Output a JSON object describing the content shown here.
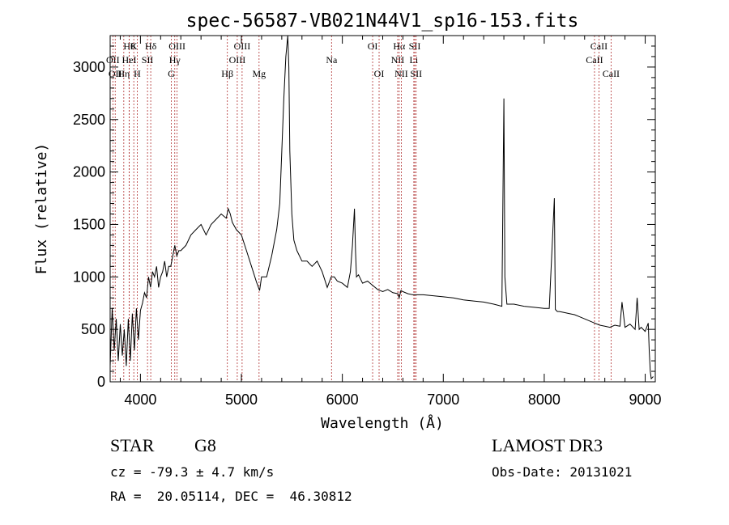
{
  "chart_data": {
    "type": "line",
    "title": "spec-56587-VB021N44V1_sp16-153.fits",
    "xlabel": "Wavelength (Å)",
    "ylabel": "Flux (relative)",
    "xlim": [
      3700,
      9100
    ],
    "ylim": [
      0,
      3300
    ],
    "xticks": [
      4000,
      5000,
      6000,
      7000,
      8000,
      9000
    ],
    "yticks": [
      0,
      500,
      1000,
      1500,
      2000,
      2500,
      3000
    ],
    "grid": false,
    "series": [
      {
        "color": "#000000",
        "x": [
          3700,
          3720,
          3740,
          3760,
          3780,
          3800,
          3820,
          3840,
          3860,
          3880,
          3900,
          3920,
          3940,
          3960,
          3980,
          4000,
          4020,
          4040,
          4060,
          4080,
          4100,
          4120,
          4140,
          4160,
          4180,
          4200,
          4220,
          4240,
          4260,
          4280,
          4300,
          4320,
          4340,
          4360,
          4380,
          4400,
          4450,
          4500,
          4550,
          4600,
          4650,
          4700,
          4750,
          4800,
          4850,
          4870,
          4890,
          4910,
          4950,
          5000,
          5050,
          5100,
          5150,
          5180,
          5200,
          5250,
          5300,
          5350,
          5380,
          5400,
          5420,
          5440,
          5460,
          5470,
          5480,
          5500,
          5520,
          5550,
          5600,
          5650,
          5700,
          5750,
          5800,
          5850,
          5890,
          5920,
          5950,
          6000,
          6050,
          6080,
          6100,
          6120,
          6130,
          6140,
          6160,
          6200,
          6250,
          6300,
          6350,
          6400,
          6450,
          6500,
          6550,
          6563,
          6580,
          6600,
          6650,
          6700,
          6800,
          6900,
          7000,
          7100,
          7200,
          7300,
          7400,
          7500,
          7580,
          7600,
          7610,
          7630,
          7700,
          7800,
          7900,
          8000,
          8050,
          8100,
          8110,
          8130,
          8150,
          8200,
          8250,
          8300,
          8350,
          8400,
          8450,
          8500,
          8550,
          8600,
          8650,
          8700,
          8750,
          8770,
          8800,
          8850,
          8900,
          8920,
          8940,
          8960,
          9000,
          9030,
          9040,
          9050,
          9060,
          9080
        ],
        "y": [
          150,
          700,
          300,
          600,
          200,
          550,
          250,
          500,
          150,
          600,
          200,
          650,
          300,
          700,
          400,
          680,
          750,
          850,
          800,
          1000,
          900,
          1050,
          1000,
          1100,
          900,
          1000,
          1050,
          1150,
          1000,
          1100,
          1100,
          1200,
          1300,
          1200,
          1250,
          1250,
          1300,
          1400,
          1450,
          1500,
          1400,
          1500,
          1550,
          1600,
          1560,
          1650,
          1600,
          1520,
          1450,
          1400,
          1250,
          1100,
          950,
          870,
          1000,
          1000,
          1200,
          1450,
          1700,
          2200,
          2700,
          3100,
          3300,
          3000,
          2200,
          1600,
          1350,
          1250,
          1150,
          1150,
          1100,
          1150,
          1050,
          900,
          1000,
          1000,
          960,
          940,
          900,
          1050,
          1300,
          1650,
          1250,
          1000,
          1020,
          940,
          960,
          920,
          880,
          860,
          880,
          850,
          840,
          800,
          870,
          860,
          840,
          830,
          830,
          820,
          810,
          800,
          780,
          770,
          760,
          740,
          720,
          2700,
          1000,
          740,
          740,
          720,
          710,
          700,
          700,
          1750,
          690,
          670,
          670,
          660,
          650,
          640,
          620,
          600,
          580,
          560,
          540,
          530,
          520,
          540,
          530,
          760,
          520,
          550,
          500,
          800,
          500,
          520,
          480,
          560,
          300,
          100,
          30,
          50
        ],
        "line": true
      }
    ],
    "spectral_lines": [
      {
        "wavelength": 3727,
        "label": "OII",
        "row": 2
      },
      {
        "wavelength": 3750,
        "label": "OII",
        "row": 3
      },
      {
        "wavelength": 3835,
        "label": "Hη",
        "row": 3
      },
      {
        "wavelength": 3889,
        "label": "Hθ",
        "row": 1
      },
      {
        "wavelength": 3889,
        "label": "HeI",
        "row": 2
      },
      {
        "wavelength": 3934,
        "label": "K",
        "row": 1
      },
      {
        "wavelength": 3968,
        "label": "H",
        "row": 3
      },
      {
        "wavelength": 4070,
        "label": "SII",
        "row": 2
      },
      {
        "wavelength": 4102,
        "label": "Hδ",
        "row": 1
      },
      {
        "wavelength": 4305,
        "label": "G",
        "row": 3
      },
      {
        "wavelength": 4340,
        "label": "Hγ",
        "row": 2
      },
      {
        "wavelength": 4363,
        "label": "OIII",
        "row": 1
      },
      {
        "wavelength": 4861,
        "label": "Hβ",
        "row": 3
      },
      {
        "wavelength": 4959,
        "label": "OIII",
        "row": 2
      },
      {
        "wavelength": 5007,
        "label": "OIII",
        "row": 1
      },
      {
        "wavelength": 5175,
        "label": "Mg",
        "row": 3
      },
      {
        "wavelength": 5893,
        "label": "Na",
        "row": 2
      },
      {
        "wavelength": 6300,
        "label": "OI",
        "row": 1
      },
      {
        "wavelength": 6364,
        "label": "OI",
        "row": 3
      },
      {
        "wavelength": 6548,
        "label": "NII",
        "row": 2
      },
      {
        "wavelength": 6563,
        "label": "Hα",
        "row": 1
      },
      {
        "wavelength": 6584,
        "label": "NII",
        "row": 3
      },
      {
        "wavelength": 6708,
        "label": "Li",
        "row": 2
      },
      {
        "wavelength": 6717,
        "label": "SII",
        "row": 1
      },
      {
        "wavelength": 6731,
        "label": "SII",
        "row": 3
      },
      {
        "wavelength": 8498,
        "label": "CaII",
        "row": 2
      },
      {
        "wavelength": 8542,
        "label": "CaII",
        "row": 1
      },
      {
        "wavelength": 8662,
        "label": "CaII",
        "row": 3
      }
    ]
  },
  "info": {
    "class": "STAR",
    "subclass": "G8",
    "survey": "LAMOST DR3",
    "cz": "cz = -79.3 ± 4.7 km/s",
    "obs_date": "Obs-Date: 20131021",
    "coords": "RA =  20.05114, DEC =  46.30812"
  }
}
